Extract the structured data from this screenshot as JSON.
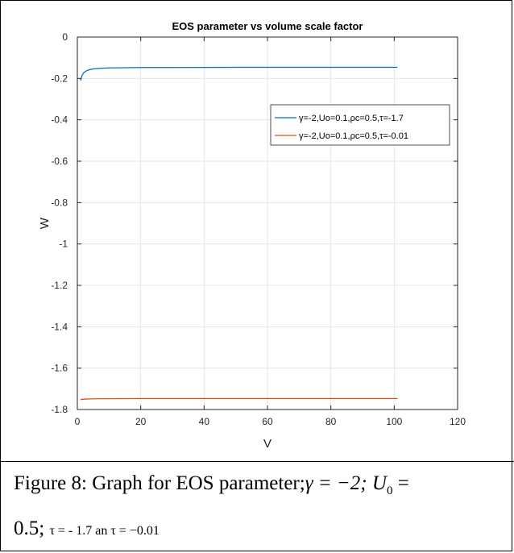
{
  "chart_data": {
    "type": "line",
    "title": "EOS parameter vs volume scale factor",
    "xlabel": "V",
    "ylabel": "W",
    "xlim": [
      0,
      120
    ],
    "ylim": [
      -1.8,
      0
    ],
    "xticks": [
      0,
      20,
      40,
      60,
      80,
      100,
      120
    ],
    "xtick_labels": [
      "0",
      "20",
      "40",
      "60",
      "80",
      "100",
      "120"
    ],
    "yticks": [
      0,
      -0.2,
      -0.4,
      -0.6,
      -0.8,
      -1,
      -1.2,
      -1.4,
      -1.6,
      -1.8
    ],
    "ytick_labels": [
      "0",
      "-0.2",
      "-0.4",
      "-0.6",
      "-0.8",
      "-1",
      "-1.2",
      "-1.4",
      "-1.6",
      "-1.8"
    ],
    "grid": true,
    "legend_position": "upper-right",
    "series": [
      {
        "name": "γ=-2,Uo=0.1,ρc=0.5,τ=-1.7",
        "color": "#0072BD",
        "x": [
          1,
          1.5,
          2,
          3,
          4,
          5,
          7,
          10,
          15,
          20,
          30,
          50,
          70,
          101
        ],
        "y": [
          -0.21,
          -0.185,
          -0.172,
          -0.162,
          -0.157,
          -0.154,
          -0.151,
          -0.149,
          -0.148,
          -0.147,
          -0.147,
          -0.146,
          -0.146,
          -0.146
        ]
      },
      {
        "name": "γ=-2,Uo=0.1,ρc=0.5,τ=-0.01",
        "color": "#D95319",
        "x": [
          1,
          2,
          4,
          7,
          10,
          20,
          40,
          70,
          101
        ],
        "y": [
          -1.752,
          -1.75,
          -1.749,
          -1.748,
          -1.748,
          -1.747,
          -1.747,
          -1.747,
          -1.747
        ]
      }
    ]
  },
  "caption": {
    "line1_prefix": "Figure 8: Graph for EOS parameter;",
    "gamma_eq": "γ = −2; ",
    "u_symbol": "U",
    "u_sub": "0",
    "u_eq": " =",
    "line2_value": "0.5; ",
    "line2_tau1": "τ = - 1.7 an ",
    "line2_tau2": "τ = −0.01"
  }
}
